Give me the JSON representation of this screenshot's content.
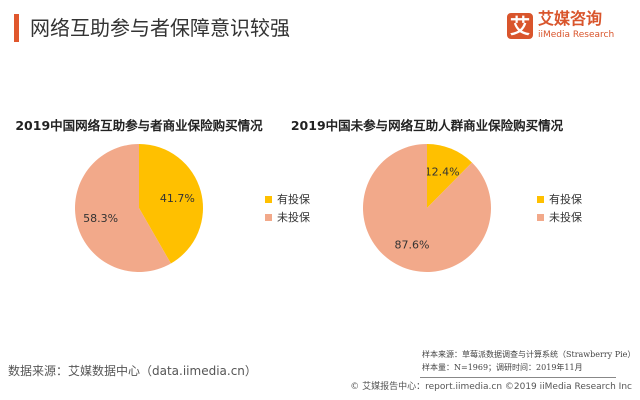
{
  "header": {
    "title": "网络互助参与者保障意识较强",
    "logo_icon": "艾",
    "logo_cn": "艾媒咨询",
    "logo_en": "iiMedia Research"
  },
  "colors": {
    "insured": "#FFC000",
    "uninsured": "#F2A98A"
  },
  "chart_data": [
    {
      "type": "pie",
      "title": "2019中国网络互助参与者商业保险购买情况",
      "slices": [
        {
          "name": "有投保",
          "value": 41.7,
          "label": "41.7%"
        },
        {
          "name": "未投保",
          "value": 58.3,
          "label": "58.3%"
        }
      ],
      "legend": "right"
    },
    {
      "type": "pie",
      "title": "2019中国未参与网络互助人群商业保险购买情况",
      "slices": [
        {
          "name": "有投保",
          "value": 12.4,
          "label": "12.4%"
        },
        {
          "name": "未投保",
          "value": 87.6,
          "label": "87.6%"
        }
      ],
      "legend": "right"
    }
  ],
  "footer": {
    "source": "数据来源：艾媒数据中心（data.iimedia.cn）",
    "sample_source": "样本来源：草莓派数据调查与计算系统（Strawberry Pie）",
    "sample_size": "样本量：N=1969；调研时间：2019年11月",
    "copyright": "© 艾媒报告中心：report.iimedia.cn  ©2019  iiMedia Research Inc"
  }
}
